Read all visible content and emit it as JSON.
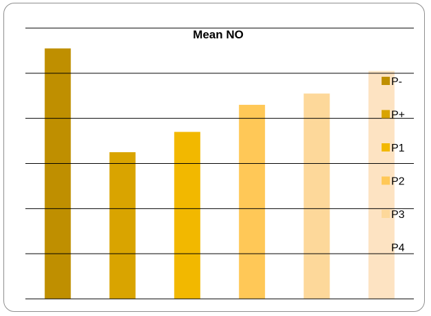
{
  "chart_data": {
    "type": "bar",
    "title": "Mean NO",
    "xlabel": "",
    "ylabel": "",
    "ylim": [
      0,
      6
    ],
    "grid": true,
    "legend_position": "right",
    "categories": [
      "P-",
      "P+",
      "P1",
      "P2",
      "P3",
      "P4"
    ],
    "values": [
      5.55,
      3.25,
      3.7,
      4.3,
      4.55,
      5.05
    ],
    "colors": [
      "#bf8f00",
      "#d9a400",
      "#f2b800",
      "#ffc857",
      "#fdd89a",
      "#fde3c2"
    ]
  }
}
